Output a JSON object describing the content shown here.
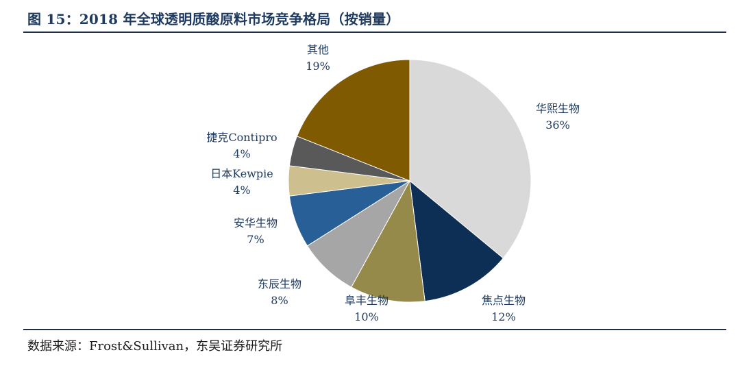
{
  "title": "图 15：2018 年全球透明质酸原料市场竞争格局（按销量）",
  "source": "数据来源：Frost&Sullivan，东吴证券研究所",
  "chart_data": {
    "type": "pie",
    "title": "图 15：2018 年全球透明质酸原料市场竞争格局（按销量）",
    "start_angle_deg": 0,
    "direction": "clockwise",
    "slices": [
      {
        "label": "华熙生物",
        "value": 36,
        "value_label": "36%",
        "color": "#d9d9d9"
      },
      {
        "label": "焦点生物",
        "value": 12,
        "value_label": "12%",
        "color": "#0e2f55"
      },
      {
        "label": "阜丰生物",
        "value": 10,
        "value_label": "10%",
        "color": "#968a4a"
      },
      {
        "label": "东辰生物",
        "value": 8,
        "value_label": "8%",
        "color": "#a6a6a6"
      },
      {
        "label": "安华生物",
        "value": 7,
        "value_label": "7%",
        "color": "#285f96"
      },
      {
        "label": "日本Kewpie",
        "value": 4,
        "value_label": "4%",
        "color": "#cdbf8e"
      },
      {
        "label": "捷克Contipro",
        "value": 4,
        "value_label": "4%",
        "color": "#595959"
      },
      {
        "label": "其他",
        "value": 19,
        "value_label": "19%",
        "color": "#7f5a00"
      }
    ]
  }
}
